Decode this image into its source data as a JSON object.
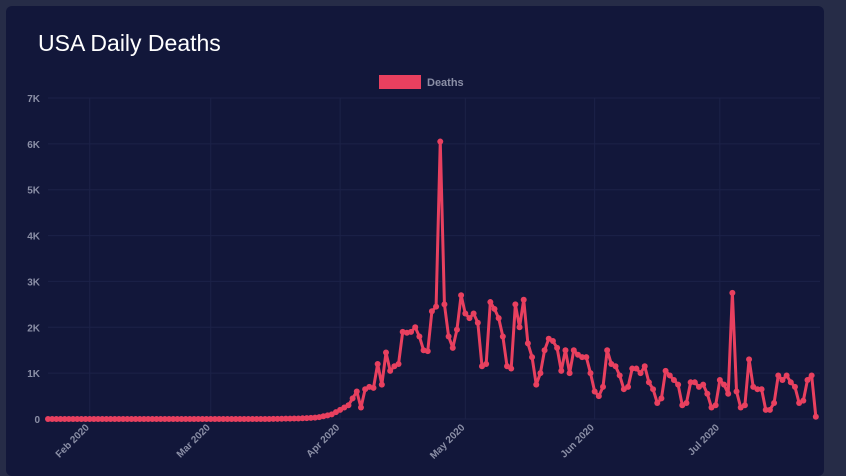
{
  "card": {
    "title": "USA Daily Deaths"
  },
  "colors": {
    "series": "#e8405f",
    "grid": "#1c2248",
    "text": "#8b8fa6",
    "background": "#12173a"
  },
  "chart_data": {
    "type": "line",
    "title": "",
    "xlabel": "",
    "ylabel": "",
    "ylim": [
      0,
      7000
    ],
    "y_ticks": [
      0,
      1000,
      2000,
      3000,
      4000,
      5000,
      6000,
      7000
    ],
    "y_tick_labels": [
      "0",
      "1K",
      "2K",
      "3K",
      "4K",
      "5K",
      "6K",
      "7K"
    ],
    "x_ticks": [
      "2020-02-01",
      "2020-03-01",
      "2020-04-01",
      "2020-05-01",
      "2020-06-01",
      "2020-07-01"
    ],
    "x_tick_labels": [
      "Feb 2020",
      "Mar 2020",
      "Apr 2020",
      "May 2020",
      "Jun 2020",
      "Jul 2020"
    ],
    "x_range": [
      "2020-01-22",
      "2020-07-25"
    ],
    "legend": {
      "position": "top-center",
      "entries": [
        "Deaths"
      ]
    },
    "grid": true,
    "series": [
      {
        "name": "Deaths",
        "start_date": "2020-01-22",
        "values": [
          0,
          0,
          0,
          0,
          0,
          0,
          0,
          0,
          0,
          0,
          0,
          0,
          0,
          0,
          0,
          0,
          0,
          0,
          0,
          0,
          0,
          0,
          0,
          0,
          0,
          0,
          0,
          0,
          0,
          0,
          0,
          0,
          0,
          0,
          0,
          0,
          0,
          0,
          0,
          0,
          0,
          0,
          0,
          0,
          0,
          0,
          0,
          0,
          0,
          0,
          0,
          0,
          0,
          0,
          2,
          3,
          5,
          7,
          8,
          10,
          12,
          15,
          20,
          25,
          30,
          40,
          60,
          80,
          100,
          150,
          200,
          250,
          300,
          450,
          600,
          250,
          650,
          700,
          680,
          1200,
          750,
          1450,
          1050,
          1150,
          1200,
          1900,
          1880,
          1900,
          2000,
          1800,
          1500,
          1480,
          2350,
          2450,
          6050,
          2500,
          1800,
          1550,
          1950,
          2700,
          2300,
          2200,
          2300,
          2100,
          1150,
          1200,
          2550,
          2400,
          2200,
          1800,
          1150,
          1100,
          2500,
          2000,
          2600,
          1650,
          1350,
          750,
          1000,
          1500,
          1750,
          1700,
          1550,
          1050,
          1500,
          1000,
          1500,
          1400,
          1350,
          1350,
          1000,
          600,
          500,
          700,
          1500,
          1200,
          1150,
          950,
          650,
          700,
          1100,
          1100,
          1000,
          1150,
          800,
          650,
          350,
          450,
          1050,
          950,
          850,
          750,
          300,
          350,
          800,
          800,
          700,
          750,
          550,
          250,
          300,
          850,
          750,
          550,
          2750,
          600,
          250,
          300,
          1300,
          700,
          650,
          650,
          200,
          200,
          350,
          950,
          850,
          950,
          800,
          700,
          350,
          400,
          850,
          950,
          50
        ]
      }
    ]
  }
}
